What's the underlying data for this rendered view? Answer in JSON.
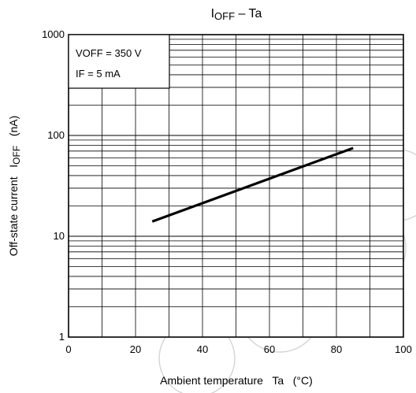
{
  "chart_data": {
    "type": "line",
    "title_main": "I",
    "title_sub": "OFF",
    "title_tail": " – Ta",
    "xlabel": "Ambient temperature   Ta   (°C)",
    "ylabel_main": "Off-state current   I",
    "ylabel_sub": "OFF",
    "ylabel_unit": "   (nA)",
    "xlim": [
      0,
      100
    ],
    "ylim": [
      1,
      1000
    ],
    "y_scale": "log",
    "grid": true,
    "x_ticks": [
      "0",
      "20",
      "40",
      "60",
      "80",
      "100"
    ],
    "y_ticks": [
      "1",
      "10",
      "100",
      "1000"
    ],
    "legend_box": {
      "line1": "VOFF = 350 V",
      "line2": "IF = 5 mA",
      "placement": "top-left"
    },
    "series": [
      {
        "x": [
          25,
          85
        ],
        "y": [
          14,
          75
        ]
      }
    ]
  }
}
